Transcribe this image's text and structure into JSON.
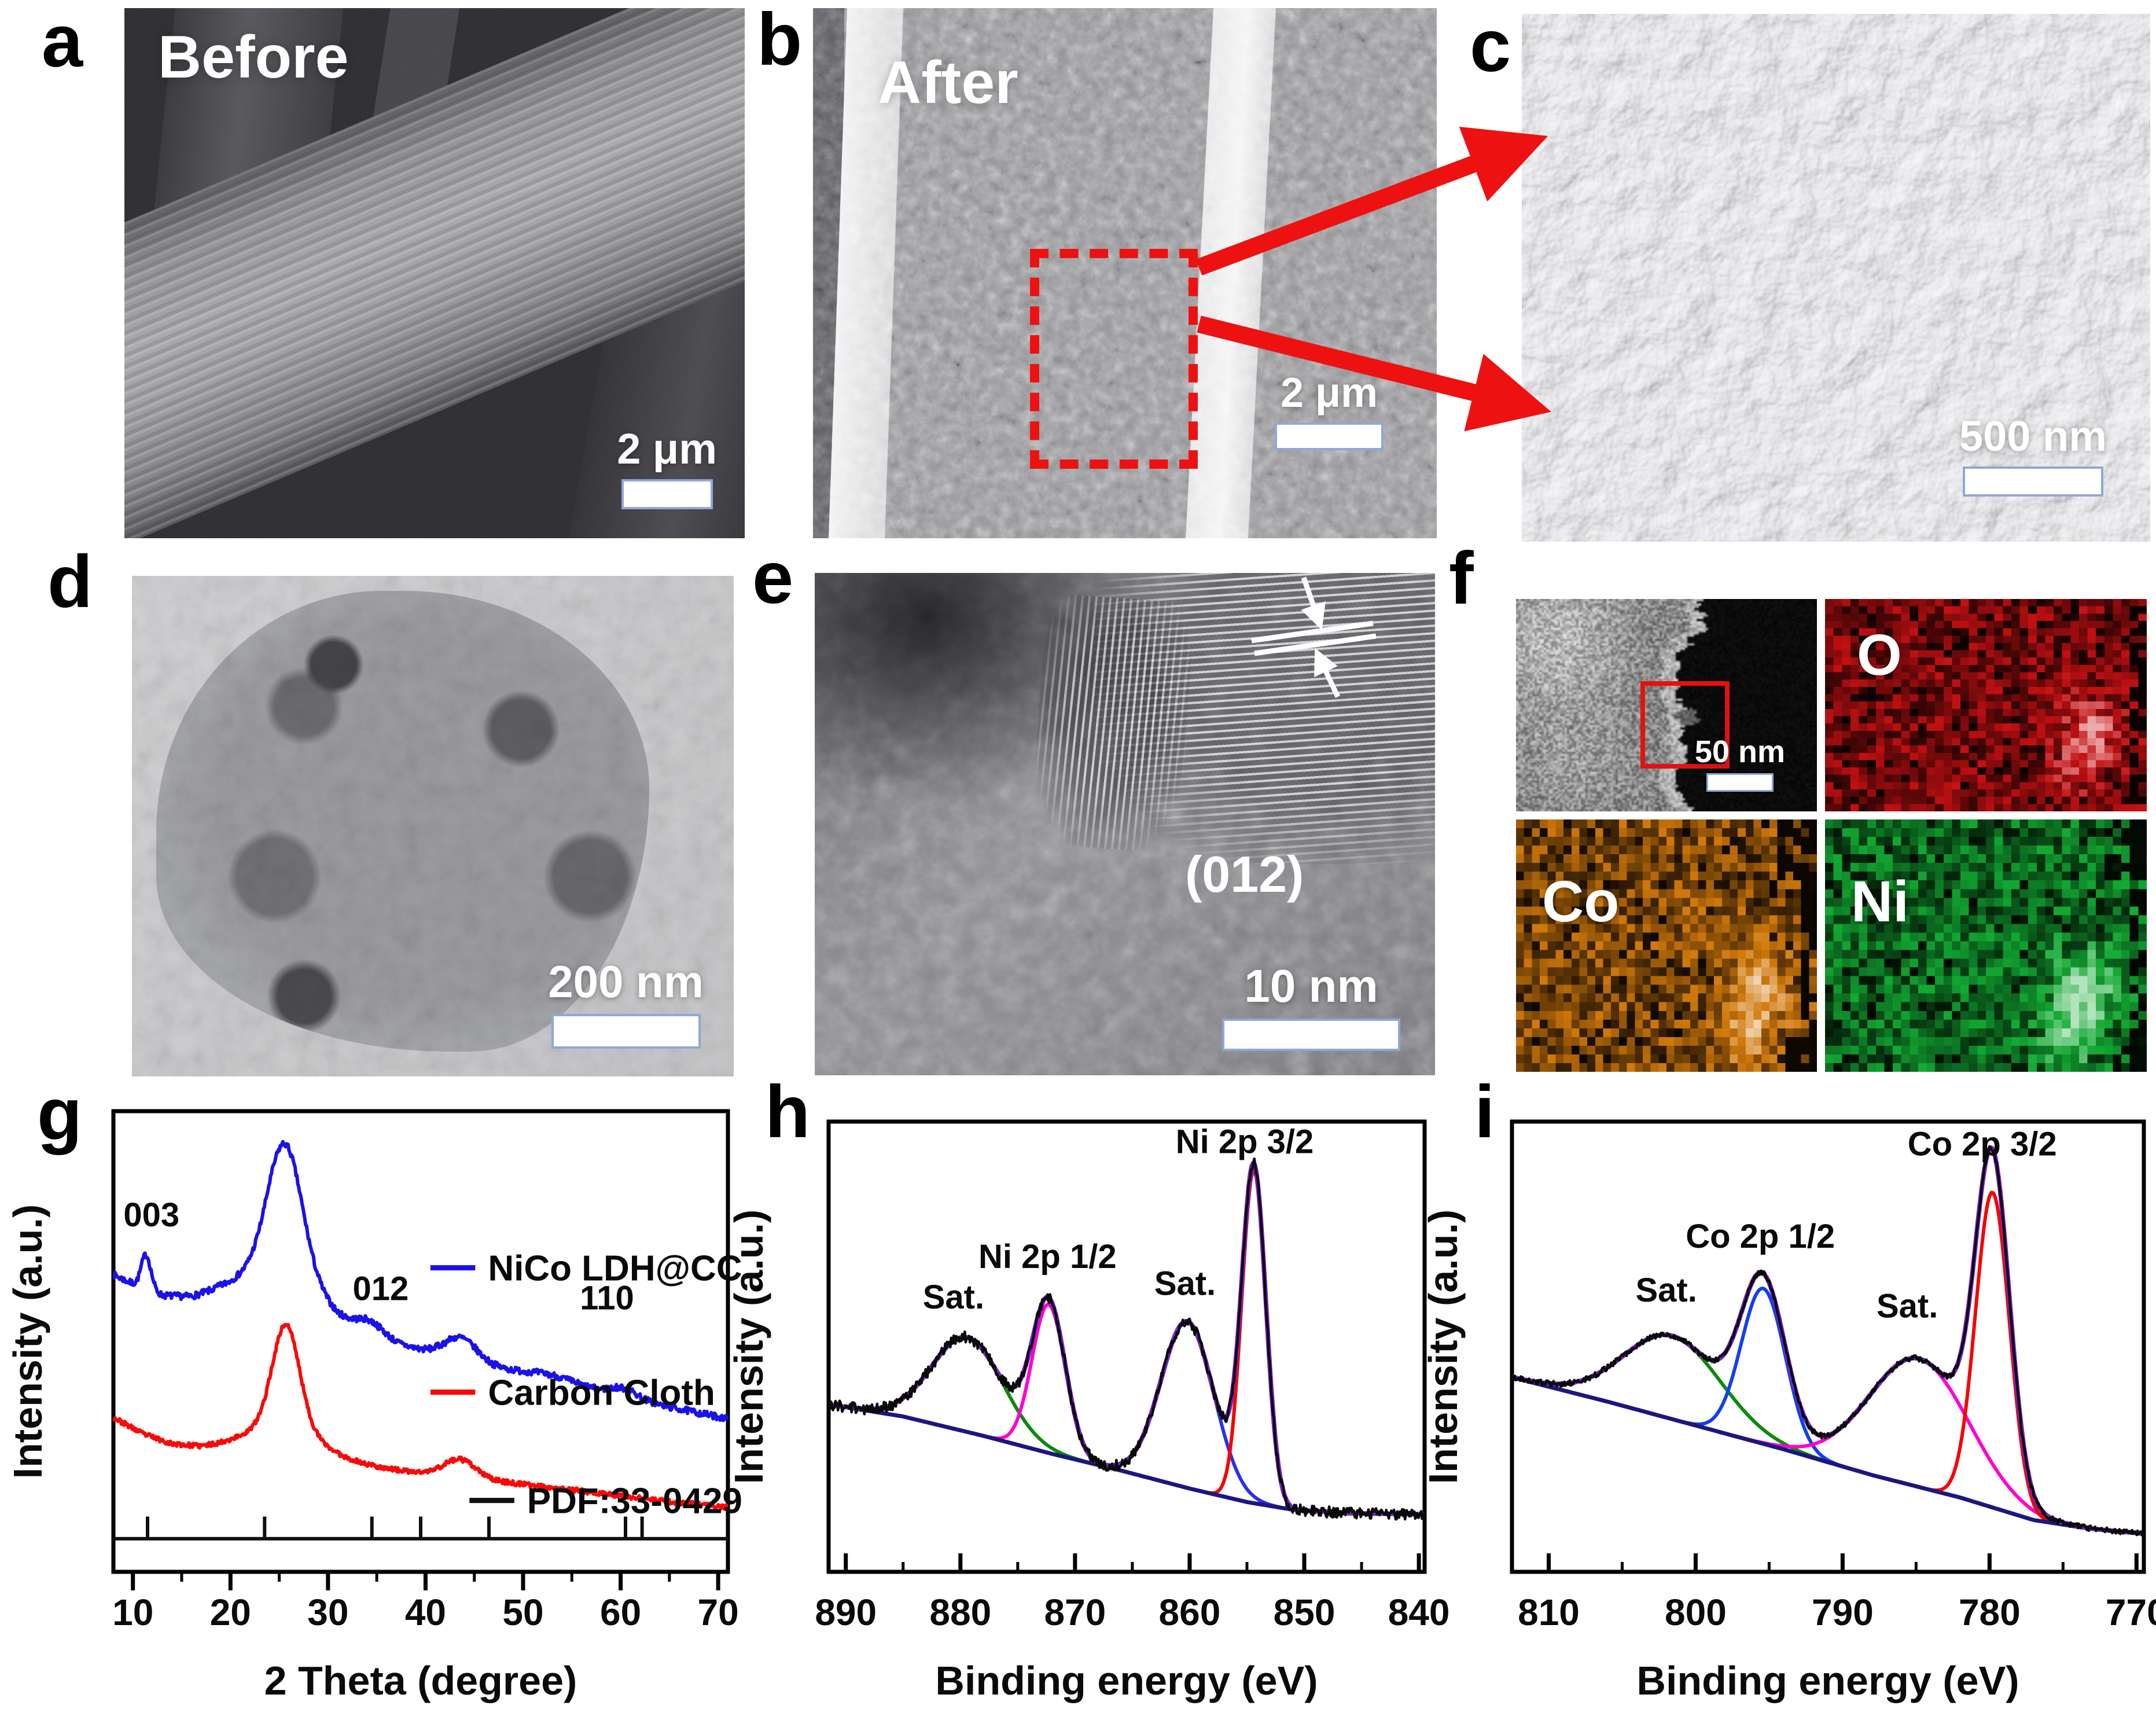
{
  "panels": {
    "a": {
      "letter": "a",
      "overlay": "Before",
      "scalebar": "2 μm"
    },
    "b": {
      "letter": "b",
      "overlay": "After",
      "scalebar": "2 μm"
    },
    "c": {
      "letter": "c",
      "scalebar": "500 nm"
    },
    "d": {
      "letter": "d",
      "scalebar": "200 nm"
    },
    "e": {
      "letter": "e",
      "plane_label": "(012)",
      "scalebar": "10 nm"
    },
    "f": {
      "letter": "f",
      "scalebar": "50 nm",
      "maps": {
        "O": "O",
        "Co": "Co",
        "Ni": "Ni"
      }
    },
    "g": {
      "letter": "g"
    },
    "h": {
      "letter": "h"
    },
    "i": {
      "letter": "i"
    }
  },
  "colors": {
    "annotation_red": "#ee1111",
    "xrd_blue": "#1a12e8",
    "xrd_red": "#fb0807",
    "xps_envelope": "#7a1fd4",
    "xps_background": "#1c1680",
    "eds_O": "#c01010",
    "eds_Co": "#d97a10",
    "eds_Ni": "#12a545",
    "scalebar_border": "#8fa8d8"
  },
  "chart_data": [
    {
      "id": "xrd",
      "type": "line",
      "panel": "g",
      "xlabel": "2 Theta (degree)",
      "ylabel": "Intensity (a.u.)",
      "xlim": [
        8,
        71
      ],
      "reversed": false,
      "xticks": [
        10,
        20,
        30,
        40,
        50,
        60,
        70
      ],
      "minor_tick_step": 5,
      "yaxis": "arbitrary units, no y tick labels",
      "series": [
        {
          "name": "NiCo LDH@CC",
          "color": "#1a12e8",
          "lw": 6,
          "noise": 0.007,
          "seed": 7,
          "base": [
            [
              8,
              0.645
            ],
            [
              10.5,
              0.62
            ],
            [
              13,
              0.6
            ],
            [
              16,
              0.595
            ],
            [
              19,
              0.603
            ],
            [
              24,
              0.6
            ],
            [
              28,
              0.56
            ],
            [
              31,
              0.53
            ],
            [
              34,
              0.52
            ],
            [
              37,
              0.495
            ],
            [
              40,
              0.48
            ],
            [
              44,
              0.462
            ],
            [
              48,
              0.44
            ],
            [
              52,
              0.42
            ],
            [
              56,
              0.4
            ],
            [
              60,
              0.382
            ],
            [
              64,
              0.362
            ],
            [
              68,
              0.345
            ],
            [
              71,
              0.332
            ]
          ],
          "peaks": [
            [
              11.35,
              0.5,
              0.075
            ],
            [
              25.6,
              1.7,
              0.26
            ],
            [
              25.6,
              3.8,
              0.085
            ],
            [
              34.4,
              1.4,
              0.022
            ],
            [
              43.6,
              1.6,
              0.045
            ],
            [
              53,
              2.5,
              0.012
            ],
            [
              60.3,
              1.4,
              0.018
            ]
          ]
        },
        {
          "name": "Carbon Cloth",
          "color": "#fb0807",
          "lw": 6,
          "noise": 0.005,
          "seed": 23,
          "base": [
            [
              8,
              0.335
            ],
            [
              11,
              0.3
            ],
            [
              14,
              0.278
            ],
            [
              17,
              0.272
            ],
            [
              20,
              0.278
            ],
            [
              24,
              0.28
            ],
            [
              28,
              0.262
            ],
            [
              31,
              0.245
            ],
            [
              34,
              0.232
            ],
            [
              38,
              0.218
            ],
            [
              42,
              0.21
            ],
            [
              46,
              0.2
            ],
            [
              50,
              0.19
            ],
            [
              55,
              0.178
            ],
            [
              60,
              0.165
            ],
            [
              65,
              0.152
            ],
            [
              71,
              0.14
            ]
          ],
          "peaks": [
            [
              25.7,
              1.35,
              0.215
            ],
            [
              25.7,
              3.2,
              0.05
            ],
            [
              43.5,
              1.6,
              0.038
            ]
          ]
        }
      ],
      "reference_pattern": {
        "name": "PDF:33-0429",
        "color": "#101010",
        "baseline_u": 0.072,
        "tick_height": 0.048,
        "positions": [
          11.5,
          23.5,
          34.5,
          39.5,
          46.5,
          60.5,
          62.2
        ]
      },
      "peak_labels": [
        {
          "text": "003",
          "x": 11.9,
          "u": 0.75
        },
        {
          "text": "012",
          "x": 35.4,
          "u": 0.59
        },
        {
          "text": "110",
          "x": 58.6,
          "u": 0.57
        }
      ],
      "legend": [
        {
          "label": "NiCo LDH@CC",
          "color": "#1a12e8",
          "x": 40.5,
          "u": 0.66
        },
        {
          "label": "Carbon Cloth",
          "color": "#fb0807",
          "x": 40.5,
          "u": 0.39
        },
        {
          "label": "PDF:33-0429",
          "color": "#101010",
          "x": 44.5,
          "u": 0.155
        }
      ]
    },
    {
      "id": "ni2p",
      "type": "line",
      "panel": "h",
      "xlabel": "Binding energy (eV)",
      "ylabel": "Intensity (a.u.)",
      "xlim": [
        839.5,
        891.5
      ],
      "reversed": true,
      "xticks": [
        890,
        880,
        870,
        860,
        850,
        840
      ],
      "minor_tick_step": 5,
      "raw_color": "#0a0a0a",
      "envelope_color": "#7a1fd4",
      "noise": 0.012,
      "seed": 3,
      "background": {
        "color": "#1c1680",
        "base": [
          [
            839.5,
            0.128
          ],
          [
            846,
            0.13
          ],
          [
            851,
            0.138
          ],
          [
            855,
            0.155
          ],
          [
            860,
            0.185
          ],
          [
            866,
            0.225
          ],
          [
            872,
            0.262
          ],
          [
            878,
            0.302
          ],
          [
            885,
            0.345
          ],
          [
            891.5,
            0.372
          ]
        ]
      },
      "components": [
        {
          "label": "Sat.",
          "color": "#0b8a0b",
          "center": 879.4,
          "sigma": 3.1,
          "amp": 0.21
        },
        {
          "label": "Ni 2p 1/2",
          "color": "#ff00d0",
          "center": 872.3,
          "sigma": 1.45,
          "amp": 0.33
        },
        {
          "label": "Sat.",
          "color": "#2a32e8",
          "center": 860.2,
          "sigma": 2.3,
          "amp": 0.37
        },
        {
          "label": "Ni 2p 3/2",
          "color": "#f50400",
          "center": 854.4,
          "sigma": 1.05,
          "amp": 0.74
        }
      ],
      "labels": [
        {
          "text": "Sat.",
          "x": 880.6,
          "u": 0.585
        },
        {
          "text": "Ni 2p 1/2",
          "x": 872.4,
          "u": 0.675
        },
        {
          "text": "Sat.",
          "x": 860.4,
          "u": 0.615
        },
        {
          "text": "Ni 2p 3/2",
          "x": 855.2,
          "u": 0.93
        }
      ]
    },
    {
      "id": "co2p",
      "type": "line",
      "panel": "i",
      "xlabel": "Binding energy (eV)",
      "ylabel": "Intensity (a.u.)",
      "xlim": [
        769.5,
        812.5
      ],
      "reversed": true,
      "xticks": [
        810,
        800,
        790,
        780,
        770
      ],
      "minor_tick_step": 5,
      "raw_color": "#0a0a0a",
      "envelope_color": "#7a1fd4",
      "noise": 0.006,
      "seed": 9,
      "background": {
        "color": "#1c1680",
        "base": [
          [
            769.5,
            0.085
          ],
          [
            773,
            0.095
          ],
          [
            777,
            0.115
          ],
          [
            782,
            0.165
          ],
          [
            788,
            0.215
          ],
          [
            794,
            0.272
          ],
          [
            800,
            0.325
          ],
          [
            806,
            0.378
          ],
          [
            812.5,
            0.432
          ]
        ]
      },
      "components": [
        {
          "label": "Sat.",
          "color": "#0b8a0b",
          "center": 801.6,
          "sigma": 3.3,
          "amp": 0.185
        },
        {
          "label": "Co 2p 1/2",
          "color": "#1240f0",
          "center": 795.4,
          "sigma": 1.5,
          "amp": 0.345
        },
        {
          "label": "Sat.",
          "color": "#ff00d0",
          "center": 784.8,
          "sigma": 3.4,
          "amp": 0.285
        },
        {
          "label": "Co 2p 3/2",
          "color": "#f50400",
          "center": 779.8,
          "sigma": 1.15,
          "amp": 0.7
        }
      ],
      "labels": [
        {
          "text": "Sat.",
          "x": 802,
          "u": 0.6
        },
        {
          "text": "Co 2p 1/2",
          "x": 795.6,
          "u": 0.72
        },
        {
          "text": "Sat.",
          "x": 785.6,
          "u": 0.565
        },
        {
          "text": "Co 2p 3/2",
          "x": 780.5,
          "u": 0.925
        }
      ]
    }
  ]
}
